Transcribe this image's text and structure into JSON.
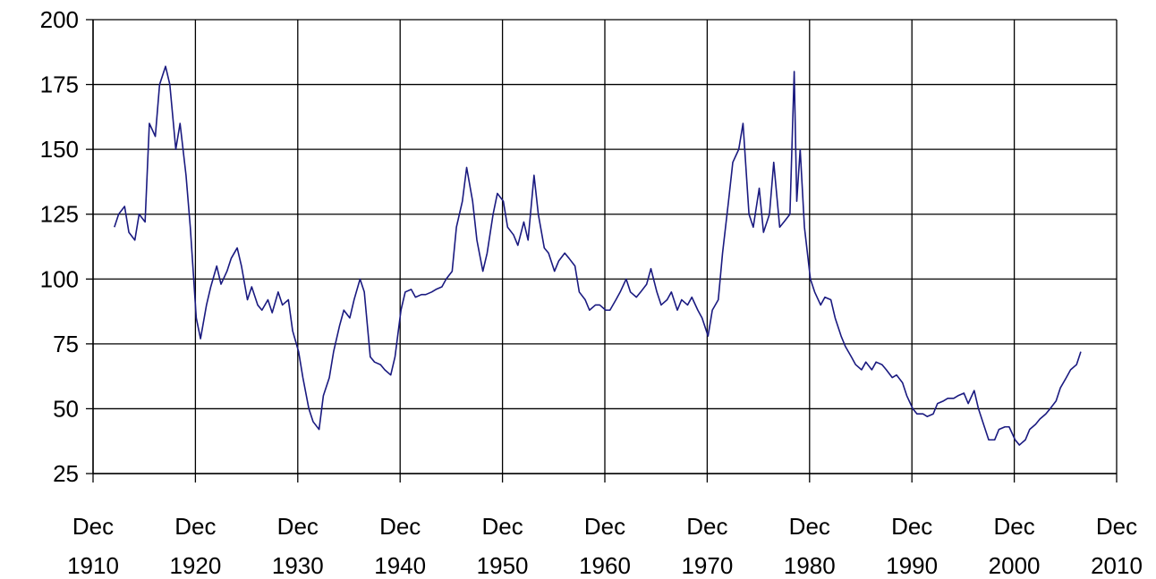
{
  "chart_data": {
    "type": "line",
    "x": [
      "1913-01",
      "1913-06",
      "1914-01",
      "1914-06",
      "1915-01",
      "1915-06",
      "1916-01",
      "1916-06",
      "1917-01",
      "1917-06",
      "1918-01",
      "1918-06",
      "1919-01",
      "1919-06",
      "1920-01",
      "1920-06",
      "1921-01",
      "1921-06",
      "1922-01",
      "1922-06",
      "1923-01",
      "1923-06",
      "1924-01",
      "1924-06",
      "1925-01",
      "1925-06",
      "1926-01",
      "1926-06",
      "1927-01",
      "1927-06",
      "1928-01",
      "1928-06",
      "1929-01",
      "1929-06",
      "1930-01",
      "1930-06",
      "1931-01",
      "1931-06",
      "1932-01",
      "1932-06",
      "1933-01",
      "1933-06",
      "1934-01",
      "1934-06",
      "1935-01",
      "1935-06",
      "1936-01",
      "1936-06",
      "1937-01",
      "1937-06",
      "1938-01",
      "1938-06",
      "1939-01",
      "1939-06",
      "1940-01",
      "1940-06",
      "1941-01",
      "1941-06",
      "1942-01",
      "1942-06",
      "1943-01",
      "1943-06",
      "1944-01",
      "1944-06",
      "1945-01",
      "1945-06",
      "1946-01",
      "1946-06",
      "1947-01",
      "1947-06",
      "1948-01",
      "1948-06",
      "1949-01",
      "1949-06",
      "1950-01",
      "1950-06",
      "1951-01",
      "1951-06",
      "1952-01",
      "1952-06",
      "1953-01",
      "1953-06",
      "1954-01",
      "1954-06",
      "1955-01",
      "1955-06",
      "1956-01",
      "1956-06",
      "1957-01",
      "1957-06",
      "1958-01",
      "1958-06",
      "1959-01",
      "1959-06",
      "1960-01",
      "1960-06",
      "1961-01",
      "1961-06",
      "1962-01",
      "1962-06",
      "1963-01",
      "1963-06",
      "1964-01",
      "1964-06",
      "1965-01",
      "1965-06",
      "1966-01",
      "1966-06",
      "1967-01",
      "1967-06",
      "1968-01",
      "1968-06",
      "1969-01",
      "1969-06",
      "1970-01",
      "1970-06",
      "1971-01",
      "1971-06",
      "1972-01",
      "1972-06",
      "1973-01",
      "1973-06",
      "1974-01",
      "1974-06",
      "1975-01",
      "1975-06",
      "1976-01",
      "1976-06",
      "1977-01",
      "1977-06",
      "1978-01",
      "1978-06",
      "1979-01",
      "1979-06",
      "1979-09",
      "1980-01",
      "1980-06",
      "1981-01",
      "1981-06",
      "1982-01",
      "1982-06",
      "1983-01",
      "1983-06",
      "1984-01",
      "1984-06",
      "1985-01",
      "1985-06",
      "1986-01",
      "1986-06",
      "1987-01",
      "1987-06",
      "1988-01",
      "1988-06",
      "1989-01",
      "1989-06",
      "1990-01",
      "1990-06",
      "1991-01",
      "1991-06",
      "1992-01",
      "1992-06",
      "1993-01",
      "1993-06",
      "1994-01",
      "1994-06",
      "1995-01",
      "1995-06",
      "1996-01",
      "1996-06",
      "1997-01",
      "1997-06",
      "1998-01",
      "1998-06",
      "1999-01",
      "1999-06",
      "2000-01",
      "2000-06",
      "2001-01",
      "2001-06",
      "2002-01",
      "2002-06",
      "2003-01",
      "2003-06",
      "2004-01",
      "2004-06",
      "2005-01",
      "2005-06",
      "2006-01",
      "2006-06",
      "2007-01",
      "2007-06"
    ],
    "series": [
      {
        "color": "#1a1a80",
        "values": [
          120,
          125,
          128,
          118,
          115,
          125,
          122,
          160,
          155,
          175,
          182,
          175,
          150,
          160,
          140,
          120,
          85,
          77,
          90,
          97,
          105,
          98,
          103,
          108,
          112,
          105,
          92,
          97,
          90,
          88,
          92,
          87,
          95,
          90,
          92,
          80,
          72,
          62,
          50,
          45,
          42,
          55,
          62,
          72,
          82,
          88,
          85,
          92,
          100,
          95,
          70,
          68,
          67,
          65,
          63,
          70,
          88,
          95,
          96,
          93,
          94,
          94,
          95,
          96,
          97,
          100,
          103,
          120,
          130,
          143,
          130,
          115,
          103,
          110,
          125,
          133,
          130,
          120,
          117,
          113,
          122,
          115,
          140,
          125,
          112,
          110,
          103,
          107,
          110,
          108,
          105,
          95,
          92,
          88,
          90,
          90,
          88,
          88,
          92,
          95,
          100,
          95,
          93,
          95,
          98,
          104,
          95,
          90,
          92,
          95,
          88,
          92,
          90,
          93,
          88,
          85,
          78,
          88,
          92,
          110,
          130,
          145,
          150,
          160,
          125,
          120,
          135,
          118,
          125,
          145,
          120,
          122,
          125,
          180,
          130,
          150,
          120,
          100,
          95,
          90,
          93,
          92,
          85,
          78,
          74,
          70,
          67,
          65,
          68,
          65,
          68,
          67,
          65,
          62,
          63,
          60,
          55,
          50,
          48,
          48,
          47,
          48,
          52,
          53,
          54,
          54,
          55,
          56,
          52,
          57,
          50,
          43,
          38,
          38,
          42,
          43,
          43,
          38,
          36,
          38,
          42,
          44,
          46,
          48,
          50,
          53,
          58,
          62,
          65,
          67,
          72
        ]
      }
    ],
    "xlim": [
      "1910-12",
      "2010-12"
    ],
    "xticks": [
      {
        "value": "1910-12",
        "label": "Dec 1910"
      },
      {
        "value": "1920-12",
        "label": "Dec 1920"
      },
      {
        "value": "1930-12",
        "label": "Dec 1930"
      },
      {
        "value": "1940-12",
        "label": "Dec 1940"
      },
      {
        "value": "1950-12",
        "label": "Dec 1950"
      },
      {
        "value": "1960-12",
        "label": "Dec 1960"
      },
      {
        "value": "1970-12",
        "label": "Dec 1970"
      },
      {
        "value": "1980-12",
        "label": "Dec 1980"
      },
      {
        "value": "1990-12",
        "label": "Dec 1990"
      },
      {
        "value": "2000-12",
        "label": "Dec 2000"
      },
      {
        "value": "2010-12",
        "label": "Dec 2010"
      }
    ],
    "ylim": [
      25,
      200
    ],
    "yticks": [
      25,
      50,
      75,
      100,
      125,
      150,
      175,
      200
    ],
    "grid": true
  }
}
